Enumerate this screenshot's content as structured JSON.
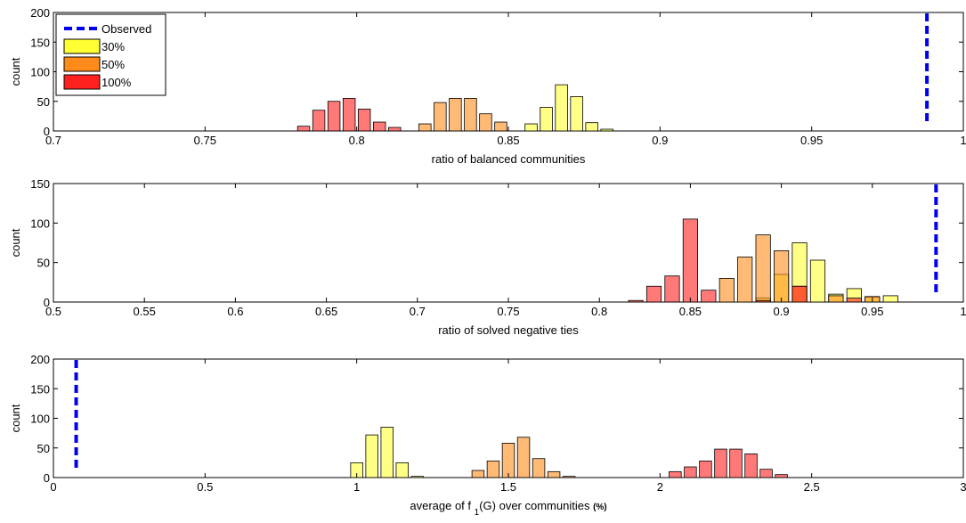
{
  "colors": {
    "observed": "#0000ee",
    "s30": "#ffff33",
    "s50": "#ff8c1a",
    "s100": "#ff2020",
    "bar_alpha": 0.6
  },
  "legend": {
    "placement": "top-left of first panel",
    "entries": [
      {
        "key": "observed",
        "label": "Observed"
      },
      {
        "key": "s30",
        "label": "30%"
      },
      {
        "key": "s50",
        "label": "50%"
      },
      {
        "key": "s100",
        "label": "100%"
      }
    ]
  },
  "chart_data": [
    {
      "type": "bar",
      "xlabel": "ratio of balanced communities",
      "ylabel": "count",
      "xlim": [
        0.7,
        1.0
      ],
      "ylim": [
        0,
        200
      ],
      "xticks": [
        0.7,
        0.75,
        0.8,
        0.85,
        0.9,
        0.95,
        1.0
      ],
      "xtick_labels": [
        "0.7",
        "0.75",
        "0.8",
        "0.85",
        "0.9",
        "0.95",
        "1"
      ],
      "yticks": [
        0,
        50,
        100,
        150,
        200
      ],
      "ytick_labels": [
        "0",
        "50",
        "100",
        "150",
        "200"
      ],
      "bin_width": 0.005,
      "observed": 0.988,
      "series": [
        {
          "key": "s100",
          "name": "100%",
          "bars": [
            [
              0.7825,
              8
            ],
            [
              0.7875,
              35
            ],
            [
              0.7925,
              50
            ],
            [
              0.7975,
              55
            ],
            [
              0.8025,
              37
            ],
            [
              0.8075,
              15
            ],
            [
              0.8125,
              6
            ]
          ]
        },
        {
          "key": "s50",
          "name": "50%",
          "bars": [
            [
              0.8225,
              12
            ],
            [
              0.8275,
              48
            ],
            [
              0.8325,
              55
            ],
            [
              0.8375,
              55
            ],
            [
              0.8425,
              29
            ],
            [
              0.8475,
              15
            ]
          ]
        },
        {
          "key": "s30",
          "name": "30%",
          "bars": [
            [
              0.8575,
              12
            ],
            [
              0.8625,
              40
            ],
            [
              0.8675,
              78
            ],
            [
              0.8725,
              58
            ],
            [
              0.8775,
              14
            ],
            [
              0.8825,
              3
            ]
          ]
        }
      ]
    },
    {
      "type": "bar",
      "xlabel": "ratio of solved negative ties",
      "ylabel": "count",
      "xlim": [
        0.5,
        1.0
      ],
      "ylim": [
        0,
        150
      ],
      "xticks": [
        0.5,
        0.55,
        0.6,
        0.65,
        0.7,
        0.75,
        0.8,
        0.85,
        0.9,
        0.95,
        1.0
      ],
      "xtick_labels": [
        "0.5",
        "0.55",
        "0.6",
        "0.65",
        "0.7",
        "0.75",
        "0.8",
        "0.85",
        "0.9",
        "0.95",
        "1"
      ],
      "yticks": [
        0,
        50,
        100,
        150
      ],
      "ytick_labels": [
        "0",
        "50",
        "100",
        "150"
      ],
      "bin_width": 0.01,
      "observed": 0.985,
      "series": [
        {
          "key": "s30",
          "name": "30%",
          "bars": [
            [
              0.89,
              5
            ],
            [
              0.9,
              35
            ],
            [
              0.91,
              75
            ],
            [
              0.92,
              53
            ],
            [
              0.93,
              10
            ],
            [
              0.94,
              17
            ],
            [
              0.95,
              6
            ],
            [
              0.96,
              8
            ]
          ]
        },
        {
          "key": "s50",
          "name": "50%",
          "bars": [
            [
              0.87,
              30
            ],
            [
              0.88,
              57
            ],
            [
              0.89,
              85
            ],
            [
              0.9,
              65
            ],
            [
              0.91,
              20
            ],
            [
              0.93,
              8
            ],
            [
              0.95,
              7
            ]
          ]
        },
        {
          "key": "s100",
          "name": "100%",
          "bars": [
            [
              0.82,
              2
            ],
            [
              0.83,
              20
            ],
            [
              0.84,
              33
            ],
            [
              0.85,
              105
            ],
            [
              0.86,
              15
            ],
            [
              0.89,
              2
            ],
            [
              0.91,
              20
            ],
            [
              0.94,
              5
            ]
          ]
        }
      ]
    },
    {
      "type": "bar",
      "xlabel": "average of f",
      "xlabel_subscript": "1",
      "xlabel_rest": "(G) over communities",
      "xlabel_unit": "(%)",
      "ylabel": "count",
      "xlim": [
        0,
        3
      ],
      "ylim": [
        0,
        200
      ],
      "xticks": [
        0,
        0.5,
        1,
        1.5,
        2,
        2.5,
        3
      ],
      "xtick_labels": [
        "0",
        "0.5",
        "1",
        "1.5",
        "2",
        "2.5",
        "3"
      ],
      "yticks": [
        0,
        50,
        100,
        150,
        200
      ],
      "ytick_labels": [
        "0",
        "50",
        "100",
        "150",
        "200"
      ],
      "bin_width": 0.05,
      "observed": 0.075,
      "series": [
        {
          "key": "s30",
          "name": "30%",
          "bars": [
            [
              1.0,
              25
            ],
            [
              1.05,
              72
            ],
            [
              1.1,
              85
            ],
            [
              1.15,
              25
            ],
            [
              1.2,
              2
            ]
          ]
        },
        {
          "key": "s50",
          "name": "50%",
          "bars": [
            [
              1.4,
              12
            ],
            [
              1.45,
              28
            ],
            [
              1.5,
              58
            ],
            [
              1.55,
              68
            ],
            [
              1.6,
              32
            ],
            [
              1.65,
              10
            ],
            [
              1.7,
              2
            ]
          ]
        },
        {
          "key": "s100",
          "name": "100%",
          "bars": [
            [
              2.05,
              10
            ],
            [
              2.1,
              18
            ],
            [
              2.15,
              28
            ],
            [
              2.2,
              48
            ],
            [
              2.25,
              48
            ],
            [
              2.3,
              40
            ],
            [
              2.35,
              14
            ],
            [
              2.4,
              5
            ]
          ]
        }
      ]
    }
  ]
}
